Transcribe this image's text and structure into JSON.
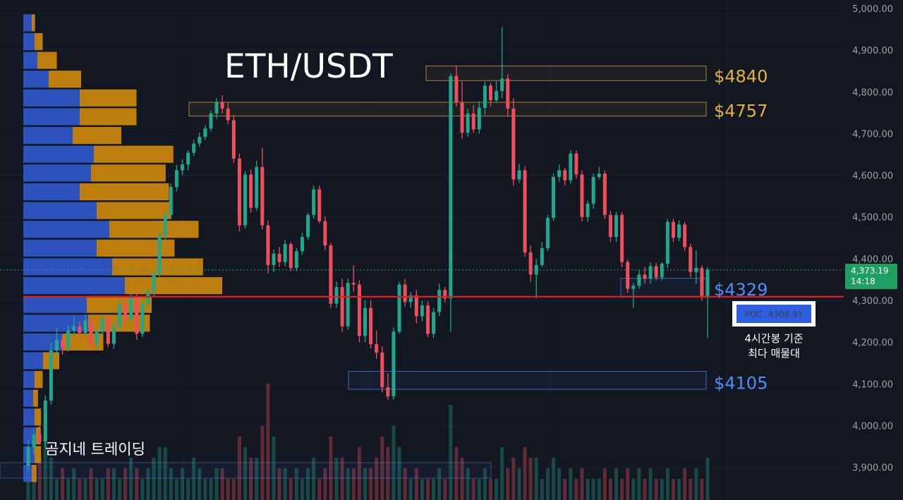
{
  "title": "ETH/USDT",
  "watermark": "곰지네 트레이딩",
  "price_axis": {
    "ticks": [
      5000,
      4900,
      4800,
      4700,
      4600,
      4500,
      4400,
      4300,
      4200,
      4100,
      4000,
      3900
    ],
    "tick_labels": [
      "5,000.00",
      "4,900.00",
      "4,800.00",
      "4,700.00",
      "4,600.00",
      "4,500.00",
      "4,400.00",
      "4,300.00",
      "4,200.00",
      "4,100.00",
      "4,000.00",
      "3,900.00"
    ]
  },
  "current_price": {
    "value": 4373.19,
    "label": "4,373.19",
    "countdown": "14:18"
  },
  "poc": {
    "value": 4308.91,
    "label": "POC: 4308.91",
    "note_line1": "4시간봉 기준",
    "note_line2": "최다 매물대"
  },
  "levels": [
    {
      "label": "$4840",
      "value": 4840,
      "low": 4827,
      "high": 4862,
      "color": "#e3b341"
    },
    {
      "label": "$4757",
      "value": 4757,
      "low": 4742,
      "high": 4775,
      "color": "#e3b341"
    },
    {
      "label": "$4329",
      "value": 4329,
      "low": 4308,
      "high": 4353,
      "color": "#4d8ff5"
    },
    {
      "label": "$4105",
      "value": 4105,
      "low": 4087,
      "high": 4130,
      "color": "#4d8ff5"
    }
  ],
  "colors": {
    "background": "#131722",
    "up": "#22a68c",
    "down": "#ef4f5d",
    "poc_line": "#e11d2a",
    "vp_buy": "#2f5bd3",
    "vp_sell": "#d08a0c",
    "axis_text": "#9aa0ac",
    "label_bg": "#1f9f62"
  },
  "chart_data": {
    "type": "candlestick",
    "title": "ETH/USDT",
    "y_range": [
      3850,
      5010
    ],
    "candles": [
      [
        3903,
        3966,
        3890,
        3948
      ],
      [
        3948,
        3990,
        3932,
        3978
      ],
      [
        3978,
        4000,
        3955,
        3962
      ],
      [
        3962,
        4072,
        3945,
        4060
      ],
      [
        4060,
        4200,
        4050,
        4180
      ],
      [
        4180,
        4235,
        4165,
        4205
      ],
      [
        4205,
        4218,
        4170,
        4186
      ],
      [
        4186,
        4240,
        4178,
        4228
      ],
      [
        4228,
        4262,
        4212,
        4238
      ],
      [
        4238,
        4250,
        4205,
        4222
      ],
      [
        4222,
        4265,
        4215,
        4252
      ],
      [
        4252,
        4258,
        4182,
        4196
      ],
      [
        4196,
        4235,
        4182,
        4225
      ],
      [
        4225,
        4265,
        4210,
        4256
      ],
      [
        4256,
        4262,
        4188,
        4196
      ],
      [
        4196,
        4250,
        4184,
        4238
      ],
      [
        4238,
        4300,
        4228,
        4290
      ],
      [
        4290,
        4305,
        4238,
        4255
      ],
      [
        4255,
        4318,
        4245,
        4308
      ],
      [
        4308,
        4318,
        4205,
        4220
      ],
      [
        4220,
        4300,
        4212,
        4292
      ],
      [
        4292,
        4330,
        4280,
        4322
      ],
      [
        4322,
        4370,
        4310,
        4362
      ],
      [
        4362,
        4466,
        4355,
        4456
      ],
      [
        4456,
        4515,
        4444,
        4505
      ],
      [
        4505,
        4580,
        4495,
        4572
      ],
      [
        4572,
        4625,
        4562,
        4612
      ],
      [
        4612,
        4638,
        4600,
        4626
      ],
      [
        4626,
        4660,
        4612,
        4654
      ],
      [
        4654,
        4685,
        4646,
        4676
      ],
      [
        4676,
        4702,
        4668,
        4692
      ],
      [
        4692,
        4720,
        4685,
        4712
      ],
      [
        4712,
        4755,
        4705,
        4748
      ],
      [
        4748,
        4785,
        4735,
        4775
      ],
      [
        4775,
        4792,
        4748,
        4760
      ],
      [
        4760,
        4775,
        4722,
        4732
      ],
      [
        4732,
        4745,
        4630,
        4640
      ],
      [
        4640,
        4652,
        4465,
        4480
      ],
      [
        4480,
        4610,
        4472,
        4602
      ],
      [
        4602,
        4615,
        4510,
        4522
      ],
      [
        4522,
        4635,
        4515,
        4620
      ],
      [
        4620,
        4666,
        4470,
        4480
      ],
      [
        4480,
        4492,
        4365,
        4385
      ],
      [
        4385,
        4422,
        4368,
        4412
      ],
      [
        4412,
        4428,
        4380,
        4392
      ],
      [
        4392,
        4445,
        4382,
        4435
      ],
      [
        4435,
        4440,
        4370,
        4378
      ],
      [
        4378,
        4425,
        4370,
        4418
      ],
      [
        4418,
        4462,
        4410,
        4452
      ],
      [
        4452,
        4510,
        4445,
        4505
      ],
      [
        4505,
        4575,
        4496,
        4566
      ],
      [
        4566,
        4575,
        4485,
        4490
      ],
      [
        4490,
        4502,
        4420,
        4432
      ],
      [
        4432,
        4438,
        4282,
        4292
      ],
      [
        4292,
        4345,
        4282,
        4332
      ],
      [
        4332,
        4352,
        4225,
        4238
      ],
      [
        4238,
        4352,
        4230,
        4342
      ],
      [
        4342,
        4385,
        4320,
        4338
      ],
      [
        4338,
        4348,
        4200,
        4215
      ],
      [
        4215,
        4300,
        4200,
        4282
      ],
      [
        4282,
        4300,
        4185,
        4195
      ],
      [
        4195,
        4228,
        4160,
        4175
      ],
      [
        4175,
        4190,
        4080,
        4092
      ],
      [
        4092,
        4125,
        4062,
        4070
      ],
      [
        4070,
        4235,
        4062,
        4225
      ],
      [
        4225,
        4345,
        4220,
        4338
      ],
      [
        4338,
        4352,
        4285,
        4296
      ],
      [
        4296,
        4320,
        4282,
        4312
      ],
      [
        4312,
        4325,
        4245,
        4262
      ],
      [
        4262,
        4300,
        4250,
        4288
      ],
      [
        4288,
        4298,
        4212,
        4220
      ],
      [
        4220,
        4282,
        4210,
        4272
      ],
      [
        4272,
        4340,
        4262,
        4325
      ],
      [
        4325,
        4332,
        4295,
        4305
      ],
      [
        4305,
        4845,
        4225,
        4838
      ],
      [
        4838,
        4862,
        4765,
        4775
      ],
      [
        4775,
        4825,
        4688,
        4702
      ],
      [
        4702,
        4760,
        4692,
        4748
      ],
      [
        4748,
        4768,
        4702,
        4710
      ],
      [
        4710,
        4778,
        4700,
        4762
      ],
      [
        4762,
        4825,
        4745,
        4815
      ],
      [
        4815,
        4822,
        4765,
        4780
      ],
      [
        4780,
        4825,
        4775,
        4802
      ],
      [
        4802,
        4955,
        4785,
        4832
      ],
      [
        4832,
        4842,
        4740,
        4760
      ],
      [
        4760,
        4785,
        4575,
        4590
      ],
      [
        4590,
        4628,
        4582,
        4612
      ],
      [
        4612,
        4622,
        4405,
        4415
      ],
      [
        4415,
        4432,
        4345,
        4362
      ],
      [
        4362,
        4400,
        4305,
        4385
      ],
      [
        4385,
        4440,
        4380,
        4425
      ],
      [
        4425,
        4505,
        4418,
        4498
      ],
      [
        4498,
        4605,
        4490,
        4596
      ],
      [
        4596,
        4626,
        4585,
        4612
      ],
      [
        4612,
        4618,
        4575,
        4588
      ],
      [
        4588,
        4660,
        4580,
        4652
      ],
      [
        4652,
        4660,
        4592,
        4602
      ],
      [
        4602,
        4612,
        4490,
        4500
      ],
      [
        4500,
        4540,
        4488,
        4532
      ],
      [
        4532,
        4605,
        4520,
        4596
      ],
      [
        4596,
        4620,
        4590,
        4604
      ],
      [
        4604,
        4612,
        4495,
        4505
      ],
      [
        4505,
        4515,
        4440,
        4452
      ],
      [
        4452,
        4512,
        4440,
        4505
      ],
      [
        4505,
        4512,
        4380,
        4392
      ],
      [
        4392,
        4398,
        4318,
        4328
      ],
      [
        4328,
        4342,
        4282,
        4335
      ],
      [
        4335,
        4372,
        4328,
        4362
      ],
      [
        4362,
        4380,
        4340,
        4352
      ],
      [
        4352,
        4392,
        4340,
        4382
      ],
      [
        4382,
        4390,
        4348,
        4355
      ],
      [
        4355,
        4392,
        4348,
        4388
      ],
      [
        4388,
        4495,
        4378,
        4488
      ],
      [
        4488,
        4495,
        4440,
        4450
      ],
      [
        4450,
        4492,
        4442,
        4482
      ],
      [
        4482,
        4488,
        4418,
        4428
      ],
      [
        4428,
        4436,
        4355,
        4368
      ],
      [
        4368,
        4420,
        4340,
        4378
      ],
      [
        4378,
        4385,
        4300,
        4310
      ],
      [
        4310,
        4380,
        4210,
        4373
      ]
    ],
    "volume_profile_rows": [
      {
        "price": 4965,
        "buy": 6,
        "sell": 2
      },
      {
        "price": 4920,
        "buy": 8,
        "sell": 5
      },
      {
        "price": 4875,
        "buy": 10,
        "sell": 12
      },
      {
        "price": 4830,
        "buy": 18,
        "sell": 20
      },
      {
        "price": 4785,
        "buy": 40,
        "sell": 35
      },
      {
        "price": 4740,
        "buy": 40,
        "sell": 35
      },
      {
        "price": 4695,
        "buy": 35,
        "sell": 30
      },
      {
        "price": 4650,
        "buy": 50,
        "sell": 49
      },
      {
        "price": 4605,
        "buy": 48,
        "sell": 46
      },
      {
        "price": 4560,
        "buy": 40,
        "sell": 55
      },
      {
        "price": 4515,
        "buy": 52,
        "sell": 46
      },
      {
        "price": 4470,
        "buy": 61,
        "sell": 55
      },
      {
        "price": 4425,
        "buy": 52,
        "sell": 48
      },
      {
        "price": 4380,
        "buy": 63,
        "sell": 56
      },
      {
        "price": 4335,
        "buy": 72,
        "sell": 60
      },
      {
        "price": 4290,
        "buy": 45,
        "sell": 40
      },
      {
        "price": 4245,
        "buy": 46,
        "sell": 38
      },
      {
        "price": 4200,
        "buy": 28,
        "sell": 25
      },
      {
        "price": 4155,
        "buy": 14,
        "sell": 10
      },
      {
        "price": 4110,
        "buy": 8,
        "sell": 5
      },
      {
        "price": 4065,
        "buy": 7,
        "sell": 3
      },
      {
        "price": 4020,
        "buy": 8,
        "sell": 4
      },
      {
        "price": 3975,
        "buy": 9,
        "sell": 3
      },
      {
        "price": 3930,
        "buy": 8,
        "sell": 4
      },
      {
        "price": 3885,
        "buy": 6,
        "sell": 3
      }
    ],
    "volume": [
      3,
      2,
      4,
      6,
      4,
      2,
      3,
      2,
      3,
      2,
      2,
      3,
      2,
      2,
      3,
      3,
      2,
      3,
      4,
      3,
      2,
      3,
      4,
      5,
      5,
      3,
      2,
      3,
      2,
      4,
      3,
      2,
      2,
      3,
      3,
      2,
      2,
      6,
      5,
      4,
      4,
      7,
      11,
      6,
      3,
      3,
      2,
      3,
      2,
      3,
      4,
      2,
      3,
      6,
      4,
      4,
      3,
      3,
      5,
      3,
      3,
      4,
      6,
      5,
      7,
      5,
      3,
      2,
      3,
      2,
      2,
      2,
      3,
      2,
      9,
      5,
      4,
      3,
      2,
      2,
      3,
      2,
      2,
      5,
      3,
      4,
      3,
      5,
      4,
      4,
      2,
      3,
      4,
      3,
      2,
      3,
      2,
      3,
      2,
      2,
      2,
      3,
      2,
      3,
      2,
      3,
      2,
      3,
      2,
      3,
      2,
      2,
      3,
      2,
      2,
      3,
      2,
      3,
      2,
      4
    ]
  }
}
